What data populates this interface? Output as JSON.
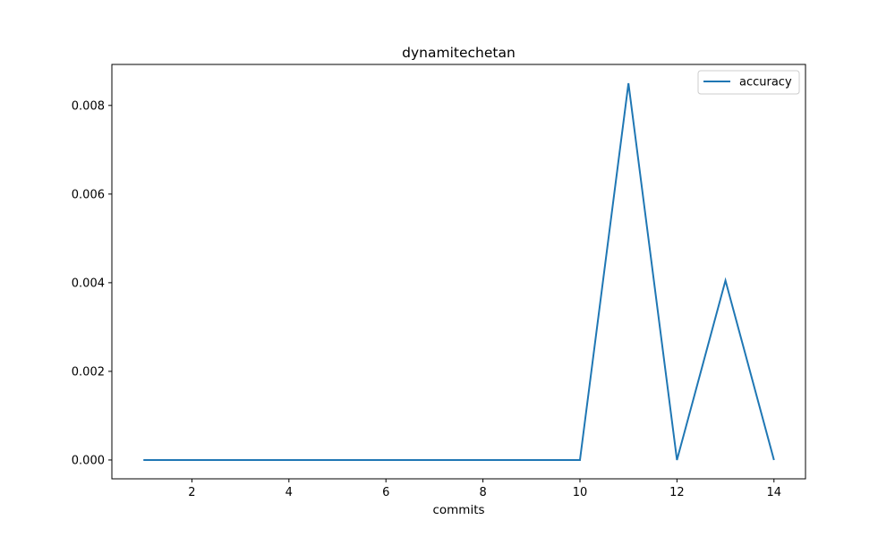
{
  "chart_data": {
    "type": "line",
    "title": "dynamitechetan",
    "xlabel": "commits",
    "ylabel": "",
    "x": [
      1,
      2,
      3,
      4,
      5,
      6,
      7,
      8,
      9,
      10,
      11,
      12,
      13,
      14
    ],
    "series": [
      {
        "name": "accuracy",
        "values": [
          0,
          0,
          0,
          0,
          0,
          0,
          0,
          0,
          0,
          0,
          0.0085,
          0,
          0.00405,
          0
        ],
        "color": "#1f77b4"
      }
    ],
    "xlim": [
      0.35,
      14.65
    ],
    "ylim": [
      -0.000425,
      0.008925
    ],
    "xticks": [
      2,
      4,
      6,
      8,
      10,
      12,
      14
    ],
    "xtick_labels": [
      "2",
      "4",
      "6",
      "8",
      "10",
      "12",
      "14"
    ],
    "yticks": [
      0,
      0.002,
      0.004,
      0.006,
      0.008
    ],
    "ytick_labels": [
      "0.000",
      "0.002",
      "0.004",
      "0.006",
      "0.008"
    ],
    "grid": false,
    "legend": "top-right"
  }
}
